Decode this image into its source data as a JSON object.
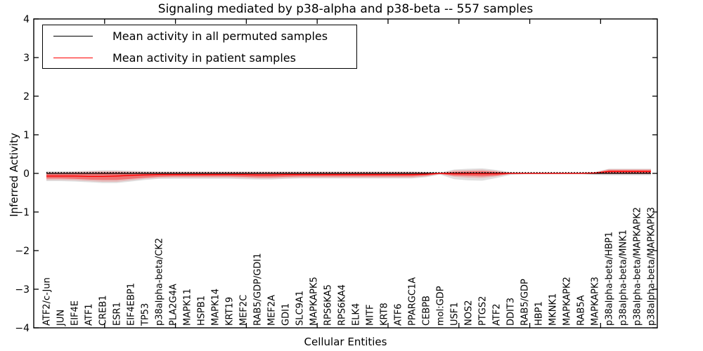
{
  "figure": {
    "title": "Signaling mediated by p38-alpha and p38-beta -- 557 samples"
  },
  "legend": {
    "entries": [
      {
        "label": "Mean activity in all permuted samples",
        "color": "#000000"
      },
      {
        "label": "Mean activity in patient samples",
        "color": "#ff0000"
      }
    ],
    "position": "upper left"
  },
  "chart_data": {
    "type": "line",
    "title": "Signaling mediated by p38-alpha and p38-beta -- 557 samples",
    "xlabel": "Cellular Entities",
    "ylabel": "Inferred Activity",
    "ylim": [
      -4,
      4
    ],
    "x_range": [
      0,
      44
    ],
    "yticks": [
      -4,
      -3,
      -2,
      -1,
      0,
      1,
      2,
      3,
      4
    ],
    "ytick_labels": [
      "−4",
      "−3",
      "−2",
      "−1",
      "0",
      "1",
      "2",
      "3",
      "4"
    ],
    "xtick_positions": [
      5,
      10,
      15,
      20,
      25,
      30,
      35,
      40
    ],
    "grid": false,
    "legend_position": "upper left",
    "categories": [
      "ATF2/c-Jun",
      "JUN",
      "EIF4E",
      "ATF1",
      "CREB1",
      "ESR1",
      "EIF4EBP1",
      "TP53",
      "p38alpha-beta/CK2",
      "PLA2G4A",
      "MAPK11",
      "HSPB1",
      "MAPK14",
      "KRT19",
      "MEF2C",
      "RAB5/GDP/GDI1",
      "MEF2A",
      "GDI1",
      "SLC9A1",
      "MAPKAPK5",
      "RPS6KA5",
      "RPS6KA4",
      "ELK4",
      "MITF",
      "KRT8",
      "ATF6",
      "PPARGC1A",
      "CEBPB",
      "mol:GDP",
      "USF1",
      "NOS2",
      "PTGS2",
      "ATF2",
      "DDIT3",
      "RAB5/GDP",
      "HBP1",
      "MKNK1",
      "MAPKAPK2",
      "RAB5A",
      "MAPKAPK3",
      "p38alpha-beta/HBP1",
      "p38alpha-beta/MNK1",
      "p38alpha-beta/MAPKAPK2",
      "p38alpha-beta/MAPKAPK3"
    ],
    "zero_line": {
      "value": 0,
      "style": "dotted",
      "color": "#000000"
    },
    "series": [
      {
        "name": "Mean activity in all permuted samples",
        "color": "#000000",
        "style": "solid",
        "values": [
          0,
          0,
          0,
          0,
          0,
          0,
          0,
          0,
          0,
          0,
          0,
          0,
          0,
          0,
          0,
          0,
          0,
          0,
          0,
          0,
          0,
          0,
          0,
          0,
          0,
          0,
          0,
          0,
          0,
          0,
          0,
          0,
          0,
          0,
          0,
          0,
          0,
          0,
          0,
          0,
          0,
          0,
          0,
          0
        ]
      },
      {
        "name": "Mean activity in patient samples",
        "color": "#ff0000",
        "style": "solid",
        "values": [
          -0.07,
          -0.07,
          -0.07,
          -0.08,
          -0.08,
          -0.07,
          -0.05,
          -0.04,
          -0.03,
          -0.03,
          -0.03,
          -0.03,
          -0.03,
          -0.03,
          -0.03,
          -0.04,
          -0.04,
          -0.03,
          -0.03,
          -0.03,
          -0.03,
          -0.03,
          -0.03,
          -0.03,
          -0.03,
          -0.03,
          -0.03,
          -0.02,
          0,
          -0.01,
          -0.01,
          -0.01,
          -0.01,
          0,
          0,
          0,
          0,
          0,
          0,
          0.01,
          0.05,
          0.05,
          0.05,
          0.05
        ]
      }
    ],
    "bands": [
      {
        "name": "permuted-spread-band",
        "color": "#999999",
        "opacity": 0.3,
        "upper": [
          0.06,
          0.06,
          0.06,
          0.07,
          0.08,
          0.08,
          0.07,
          0.06,
          0.05,
          0.05,
          0.05,
          0.05,
          0.05,
          0.05,
          0.05,
          0.05,
          0.05,
          0.05,
          0.05,
          0.05,
          0.05,
          0.05,
          0.05,
          0.05,
          0.05,
          0.05,
          0.05,
          0.04,
          0.02,
          0.1,
          0.12,
          0.13,
          0.09,
          0.03,
          0.02,
          0.02,
          0.02,
          0.02,
          0.02,
          0.03,
          0.12,
          0.12,
          0.12,
          0.12
        ],
        "lower": [
          -0.2,
          -0.2,
          -0.21,
          -0.23,
          -0.25,
          -0.25,
          -0.21,
          -0.17,
          -0.14,
          -0.14,
          -0.14,
          -0.14,
          -0.14,
          -0.14,
          -0.15,
          -0.16,
          -0.16,
          -0.14,
          -0.13,
          -0.13,
          -0.13,
          -0.13,
          -0.13,
          -0.13,
          -0.13,
          -0.13,
          -0.13,
          -0.1,
          -0.03,
          -0.15,
          -0.18,
          -0.19,
          -0.12,
          -0.04,
          -0.02,
          -0.02,
          -0.02,
          -0.02,
          -0.02,
          -0.04,
          -0.05,
          -0.05,
          -0.05,
          -0.05
        ]
      },
      {
        "name": "patient-spread-outer-band",
        "color": "#ff0000",
        "opacity": 0.16,
        "upper": [
          0.03,
          0.03,
          0.04,
          0.05,
          0.06,
          0.06,
          0.05,
          0.04,
          0.04,
          0.04,
          0.04,
          0.04,
          0.04,
          0.04,
          0.04,
          0.04,
          0.04,
          0.04,
          0.04,
          0.04,
          0.04,
          0.04,
          0.04,
          0.04,
          0.04,
          0.04,
          0.04,
          0.03,
          0.01,
          0.08,
          0.09,
          0.1,
          0.07,
          0.02,
          0.01,
          0.01,
          0.01,
          0.01,
          0.01,
          0.03,
          0.11,
          0.11,
          0.11,
          0.11
        ],
        "lower": [
          -0.17,
          -0.17,
          -0.18,
          -0.2,
          -0.22,
          -0.22,
          -0.18,
          -0.14,
          -0.12,
          -0.11,
          -0.11,
          -0.11,
          -0.11,
          -0.11,
          -0.12,
          -0.13,
          -0.13,
          -0.12,
          -0.11,
          -0.11,
          -0.11,
          -0.11,
          -0.11,
          -0.11,
          -0.11,
          -0.11,
          -0.11,
          -0.08,
          -0.02,
          -0.09,
          -0.11,
          -0.12,
          -0.08,
          -0.02,
          -0.01,
          -0.01,
          -0.01,
          -0.01,
          -0.01,
          -0.02,
          -0.02,
          -0.02,
          -0.02,
          -0.02
        ]
      },
      {
        "name": "patient-spread-inner-band",
        "color": "#ff0000",
        "opacity": 0.38,
        "upper": [
          0.0,
          0.0,
          0.01,
          0.01,
          0.02,
          0.02,
          0.01,
          0.01,
          0.01,
          0.01,
          0.01,
          0.01,
          0.01,
          0.01,
          0.01,
          0.01,
          0.01,
          0.01,
          0.01,
          0.01,
          0.01,
          0.01,
          0.01,
          0.01,
          0.01,
          0.01,
          0.01,
          0.01,
          0.0,
          0.04,
          0.05,
          0.06,
          0.04,
          0.01,
          0.0,
          0.0,
          0.0,
          0.0,
          0.0,
          0.02,
          0.09,
          0.09,
          0.09,
          0.09
        ],
        "lower": [
          -0.13,
          -0.13,
          -0.14,
          -0.16,
          -0.17,
          -0.17,
          -0.14,
          -0.11,
          -0.09,
          -0.08,
          -0.08,
          -0.08,
          -0.08,
          -0.08,
          -0.09,
          -0.1,
          -0.1,
          -0.09,
          -0.08,
          -0.08,
          -0.08,
          -0.08,
          -0.08,
          -0.08,
          -0.08,
          -0.08,
          -0.08,
          -0.06,
          -0.01,
          -0.06,
          -0.07,
          -0.08,
          -0.06,
          -0.01,
          -0.01,
          -0.01,
          -0.01,
          -0.01,
          -0.01,
          -0.01,
          0.0,
          0.0,
          0.0,
          0.0
        ]
      }
    ]
  }
}
